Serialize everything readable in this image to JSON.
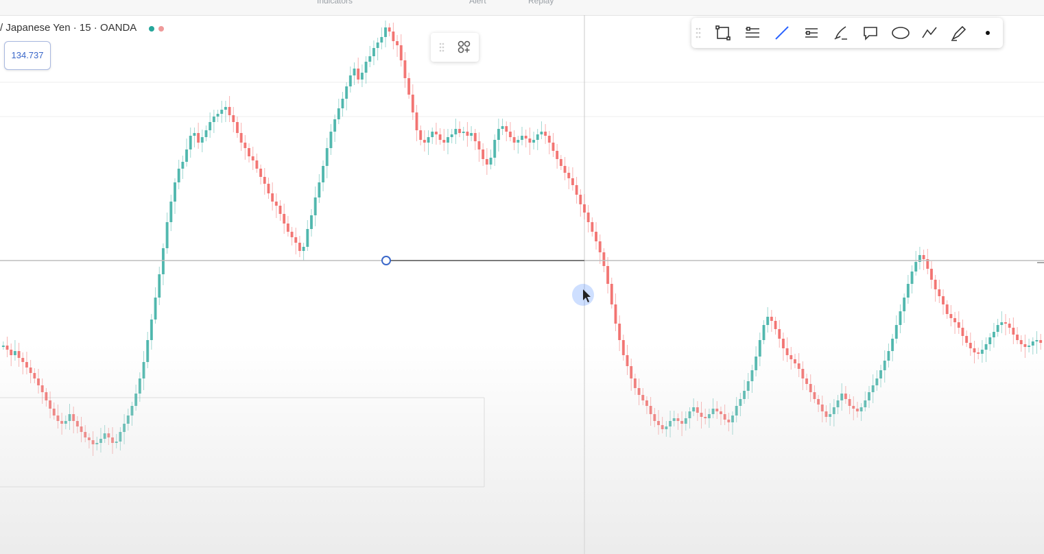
{
  "symbol": {
    "description": "/ Japanese Yen · 15 · OANDA",
    "status_colors": [
      "#26a69a",
      "#ef9a9a"
    ]
  },
  "price_tag": {
    "value": "134.737"
  },
  "top_toolbar": {
    "items": [
      "Indicators",
      "Alert",
      "Replay"
    ]
  },
  "drawing_toolbar": {
    "tools": [
      "drag-handle-icon",
      "rectangle-icon",
      "parallel-channel-icon",
      "trend-line-icon",
      "horizontal-lines-icon",
      "brush-icon",
      "callout-icon",
      "ellipse-icon",
      "path-icon",
      "pen-icon",
      "dot-icon"
    ],
    "active_tool": "trend-line-icon",
    "accent_color": "#2962ff"
  },
  "colors": {
    "up": "#26a69a",
    "down": "#ef5350",
    "horizontal_line": "#888888",
    "anchor": "#2962ff"
  },
  "candle_series": [
    140,
    134,
    126,
    132,
    122,
    116,
    108,
    100,
    92,
    82,
    72,
    60,
    48,
    38,
    30,
    26,
    30,
    40,
    30,
    22,
    14,
    6,
    2,
    -4,
    -2,
    4,
    12,
    6,
    -2,
    0,
    14,
    26,
    38,
    52,
    70,
    92,
    116,
    148,
    178,
    210,
    244,
    282,
    320,
    350,
    378,
    398,
    408,
    426,
    446,
    450,
    436,
    444,
    454,
    466,
    474,
    478,
    484,
    488,
    476,
    466,
    450,
    436,
    428,
    416,
    410,
    398,
    386,
    376,
    362,
    350,
    344,
    332,
    318,
    306,
    298,
    290,
    278,
    284,
    310,
    330,
    356,
    378,
    402,
    428,
    452,
    470,
    486,
    500,
    518,
    534,
    544,
    528,
    538,
    554,
    562,
    574,
    582,
    590,
    604,
    598,
    584,
    578,
    556,
    530,
    506,
    480,
    454,
    440,
    436,
    444,
    452,
    448,
    440,
    436,
    444,
    448,
    456,
    450,
    452,
    446,
    450,
    438,
    426,
    412,
    404,
    414,
    440,
    456,
    460,
    452,
    444,
    436,
    440,
    446,
    442,
    436,
    440,
    448,
    452,
    446,
    436,
    424,
    412,
    402,
    392,
    384,
    374,
    360,
    346,
    334,
    320,
    306,
    292,
    276,
    256,
    230,
    200,
    172,
    148,
    126,
    110,
    92,
    78,
    68,
    60,
    52,
    40,
    30,
    24,
    18,
    22,
    30,
    34,
    30,
    26,
    34,
    44,
    50,
    42,
    36,
    34,
    40,
    48,
    44,
    40,
    32,
    28,
    38,
    52,
    62,
    74,
    88,
    104,
    124,
    148,
    170,
    182,
    176,
    164,
    150,
    136,
    126,
    120,
    114,
    106,
    92,
    84,
    72,
    62,
    54,
    44,
    36,
    40,
    50,
    60,
    70,
    62,
    52,
    48,
    44,
    50,
    60,
    72,
    82,
    92,
    104,
    118,
    132,
    150,
    170,
    190,
    210,
    230,
    248,
    262,
    272,
    266,
    252,
    236,
    222,
    212,
    200,
    186,
    180,
    174,
    166,
    154,
    144,
    136,
    130,
    128,
    134,
    142,
    152,
    160,
    170,
    174,
    172,
    166,
    156,
    148,
    142,
    138,
    140,
    146,
    148,
    144
  ]
}
